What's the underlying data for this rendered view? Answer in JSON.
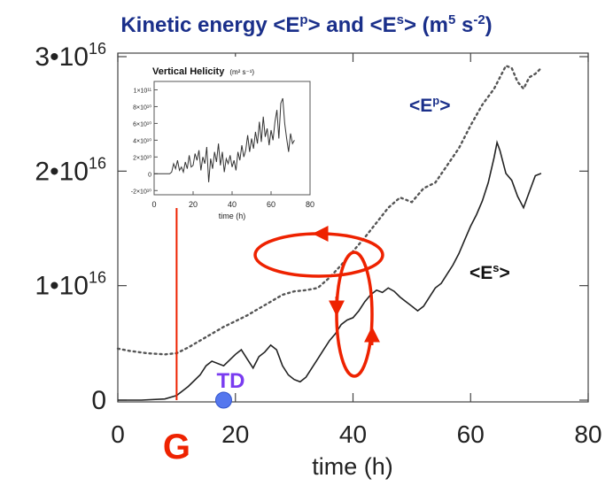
{
  "title": {
    "prefix": "Kinetic energy <E",
    "sup1": "p",
    "mid": "> and <E",
    "sup2": "s",
    "suffix": "> (m",
    "sup3": "5",
    "unit_mid": " s",
    "sup4": "-2",
    "close": ")"
  },
  "chart_data": [
    {
      "type": "line",
      "xlabel": "time (h)",
      "xlim": [
        0,
        80
      ],
      "ylim": [
        0,
        3e+16
      ],
      "x_ticks": [
        {
          "value": 0,
          "label": "0"
        },
        {
          "value": 20,
          "label": "20"
        },
        {
          "value": 40,
          "label": "40"
        },
        {
          "value": 60,
          "label": "60"
        },
        {
          "value": 80,
          "label": "80"
        }
      ],
      "y_ticks": [
        {
          "value": 0,
          "base": "0",
          "exp": ""
        },
        {
          "value": 1e+16,
          "base": "1•10",
          "exp": "16"
        },
        {
          "value": 2e+16,
          "base": "2•10",
          "exp": "16"
        },
        {
          "value": 3e+16,
          "base": "3•10",
          "exp": "16"
        }
      ],
      "series": [
        {
          "name": "<Ep>",
          "label_base": "<E",
          "label_sup": "p",
          "label_close": ">",
          "style": "dotted",
          "color": "#555555",
          "points": [
            [
              0,
              4500000000000000.0
            ],
            [
              2,
              4300000000000000.0
            ],
            [
              5,
              4100000000000000.0
            ],
            [
              8,
              4000000000000000.0
            ],
            [
              10,
              4100000000000000.0
            ],
            [
              12,
              4600000000000000.0
            ],
            [
              14,
              5200000000000000.0
            ],
            [
              16,
              5800000000000000.0
            ],
            [
              18,
              6400000000000000.0
            ],
            [
              20,
              6900000000000000.0
            ],
            [
              22,
              7400000000000000.0
            ],
            [
              24,
              8000000000000000.0
            ],
            [
              26,
              8600000000000000.0
            ],
            [
              28,
              9200000000000000.0
            ],
            [
              30,
              9500000000000000.0
            ],
            [
              32,
              9600000000000000.0
            ],
            [
              34,
              9800000000000000.0
            ],
            [
              36,
              1.07e+16
            ],
            [
              38,
              1.18e+16
            ],
            [
              40,
              1.3e+16
            ],
            [
              42,
              1.42e+16
            ],
            [
              44,
              1.55e+16
            ],
            [
              46,
              1.68e+16
            ],
            [
              48,
              1.77e+16
            ],
            [
              50,
              1.73e+16
            ],
            [
              52,
              1.85e+16
            ],
            [
              54,
              1.9e+16
            ],
            [
              56,
              2.05e+16
            ],
            [
              58,
              2.2e+16
            ],
            [
              60,
              2.4e+16
            ],
            [
              62,
              2.58e+16
            ],
            [
              64,
              2.72e+16
            ],
            [
              65,
              2.82e+16
            ],
            [
              66,
              2.92e+16
            ],
            [
              67,
              2.9e+16
            ],
            [
              68,
              2.78e+16
            ],
            [
              69,
              2.72e+16
            ],
            [
              70,
              2.82e+16
            ],
            [
              71,
              2.85e+16
            ],
            [
              72,
              2.9e+16
            ]
          ]
        },
        {
          "name": "<Es>",
          "label_base": "<E",
          "label_sup": "s",
          "label_close": ">",
          "style": "solid",
          "color": "#222222",
          "points": [
            [
              0,
              0.0
            ],
            [
              4,
              0.0
            ],
            [
              8,
              100000000000000.0
            ],
            [
              10,
              400000000000000.0
            ],
            [
              12,
              1200000000000000.0
            ],
            [
              14,
              2200000000000000.0
            ],
            [
              15,
              3000000000000000.0
            ],
            [
              16,
              3400000000000000.0
            ],
            [
              18,
              3000000000000000.0
            ],
            [
              20,
              4000000000000000.0
            ],
            [
              21,
              4400000000000000.0
            ],
            [
              22,
              3600000000000000.0
            ],
            [
              23,
              2800000000000000.0
            ],
            [
              24,
              3800000000000000.0
            ],
            [
              25,
              4200000000000000.0
            ],
            [
              26,
              4800000000000000.0
            ],
            [
              27,
              4400000000000000.0
            ],
            [
              28,
              3000000000000000.0
            ],
            [
              29,
              2200000000000000.0
            ],
            [
              30,
              1800000000000000.0
            ],
            [
              31,
              1600000000000000.0
            ],
            [
              32,
              2000000000000000.0
            ],
            [
              33,
              2800000000000000.0
            ],
            [
              34,
              3600000000000000.0
            ],
            [
              35,
              4400000000000000.0
            ],
            [
              36,
              5200000000000000.0
            ],
            [
              37,
              5800000000000000.0
            ],
            [
              38,
              6600000000000000.0
            ],
            [
              39,
              7000000000000000.0
            ],
            [
              40,
              7200000000000000.0
            ],
            [
              41,
              7800000000000000.0
            ],
            [
              42,
              8600000000000000.0
            ],
            [
              43,
              9200000000000000.0
            ],
            [
              44,
              9600000000000000.0
            ],
            [
              45,
              9400000000000000.0
            ],
            [
              46,
              9800000000000000.0
            ],
            [
              47,
              9500000000000000.0
            ],
            [
              48,
              9000000000000000.0
            ],
            [
              49,
              8600000000000000.0
            ],
            [
              50,
              8200000000000000.0
            ],
            [
              51,
              7800000000000000.0
            ],
            [
              52,
              8200000000000000.0
            ],
            [
              53,
              9000000000000000.0
            ],
            [
              54,
              9800000000000000.0
            ],
            [
              55,
              1.02e+16
            ],
            [
              56,
              1.1e+16
            ],
            [
              57,
              1.18e+16
            ],
            [
              58,
              1.28e+16
            ],
            [
              59,
              1.4e+16
            ],
            [
              60,
              1.52e+16
            ],
            [
              61,
              1.62e+16
            ],
            [
              62,
              1.74e+16
            ],
            [
              63,
              1.9e+16
            ],
            [
              64,
              2.12e+16
            ],
            [
              64.5,
              2.25e+16
            ],
            [
              65,
              2.18e+16
            ],
            [
              66,
              1.98e+16
            ],
            [
              67,
              1.92e+16
            ],
            [
              68,
              1.78e+16
            ],
            [
              69,
              1.68e+16
            ],
            [
              70,
              1.82e+16
            ],
            [
              71,
              1.96e+16
            ],
            [
              72,
              1.98e+16
            ]
          ]
        }
      ]
    },
    {
      "type": "line",
      "title": "Vertical Helicity",
      "title_unit": "(m² s⁻¹)",
      "xlabel": "time (h)",
      "xlim": [
        0,
        80
      ],
      "ylim": [
        -25000000000.0,
        110000000000.0
      ],
      "x_ticks": [
        {
          "value": 0,
          "label": "0"
        },
        {
          "value": 20,
          "label": "20"
        },
        {
          "value": 40,
          "label": "40"
        },
        {
          "value": 60,
          "label": "60"
        },
        {
          "value": 80,
          "label": "80"
        }
      ],
      "y_ticks": [
        {
          "value": -20000000000.0,
          "label": "-2×10¹⁰"
        },
        {
          "value": 0,
          "label": "0"
        },
        {
          "value": 20000000000.0,
          "label": "2×10¹⁰"
        },
        {
          "value": 40000000000.0,
          "label": "4×10¹⁰"
        },
        {
          "value": 60000000000.0,
          "label": "6×10¹⁰"
        },
        {
          "value": 80000000000.0,
          "label": "8×10¹⁰"
        },
        {
          "value": 100000000000.0,
          "label": "1×10¹¹"
        }
      ],
      "series": [
        {
          "style": "solid",
          "color": "#333333",
          "points": [
            [
              0,
              0
            ],
            [
              8,
              0
            ],
            [
              9,
              2000000000.0
            ],
            [
              10,
              12000000000.0
            ],
            [
              11,
              6000000000.0
            ],
            [
              12,
              16000000000.0
            ],
            [
              13,
              4000000000.0
            ],
            [
              14,
              8000000000.0
            ],
            [
              15,
              2000000000.0
            ],
            [
              16,
              14000000000.0
            ],
            [
              17,
              6000000000.0
            ],
            [
              18,
              22000000000.0
            ],
            [
              19,
              8000000000.0
            ],
            [
              20,
              10000000000.0
            ],
            [
              21,
              24000000000.0
            ],
            [
              22,
              16000000000.0
            ],
            [
              23,
              28000000000.0
            ],
            [
              24,
              4000000000.0
            ],
            [
              25,
              20000000000.0
            ],
            [
              26,
              12000000000.0
            ],
            [
              27,
              32000000000.0
            ],
            [
              28,
              -10000000000.0
            ],
            [
              29,
              18000000000.0
            ],
            [
              30,
              6000000000.0
            ],
            [
              31,
              26000000000.0
            ],
            [
              32,
              14000000000.0
            ],
            [
              33,
              36000000000.0
            ],
            [
              34,
              10000000000.0
            ],
            [
              35,
              26000000000.0
            ],
            [
              36,
              2000000000.0
            ],
            [
              37,
              18000000000.0
            ],
            [
              38,
              12000000000.0
            ],
            [
              39,
              22000000000.0
            ],
            [
              40,
              8000000000.0
            ],
            [
              41,
              16000000000.0
            ],
            [
              42,
              4000000000.0
            ],
            [
              43,
              26000000000.0
            ],
            [
              44,
              16000000000.0
            ],
            [
              45,
              34000000000.0
            ],
            [
              46,
              20000000000.0
            ],
            [
              47,
              28000000000.0
            ],
            [
              48,
              46000000000.0
            ],
            [
              49,
              26000000000.0
            ],
            [
              50,
              42000000000.0
            ],
            [
              51,
              30000000000.0
            ],
            [
              52,
              50000000000.0
            ],
            [
              53,
              36000000000.0
            ],
            [
              54,
              62000000000.0
            ],
            [
              55,
              38000000000.0
            ],
            [
              56,
              68000000000.0
            ],
            [
              57,
              44000000000.0
            ],
            [
              58,
              54000000000.0
            ],
            [
              59,
              34000000000.0
            ],
            [
              60,
              52000000000.0
            ],
            [
              61,
              40000000000.0
            ],
            [
              62,
              62000000000.0
            ],
            [
              63,
              76000000000.0
            ],
            [
              64,
              42000000000.0
            ],
            [
              65,
              84000000000.0
            ],
            [
              66,
              90000000000.0
            ],
            [
              67,
              60000000000.0
            ],
            [
              68,
              42000000000.0
            ],
            [
              69,
              26000000000.0
            ],
            [
              70,
              48000000000.0
            ],
            [
              71,
              36000000000.0
            ],
            [
              72,
              40000000000.0
            ]
          ]
        }
      ]
    }
  ],
  "annotations": {
    "g_label": "G",
    "g_line_time": 10,
    "td_label": "TD",
    "td_time": 18,
    "accent_color": "#ee2200",
    "td_color": "#5577ee",
    "title_color": "#1a2f8a"
  }
}
